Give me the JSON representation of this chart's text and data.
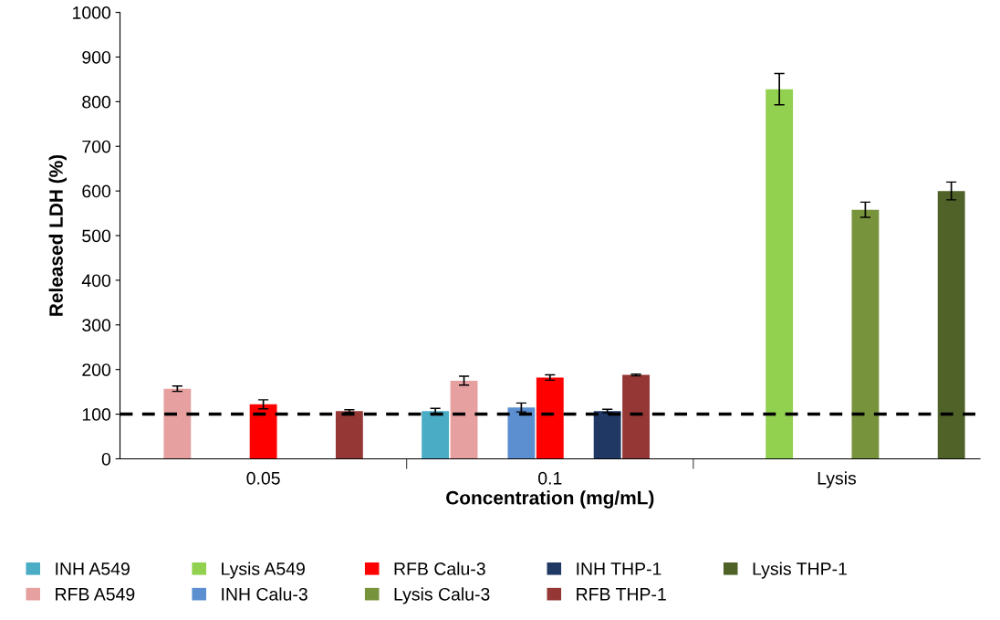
{
  "chart_data": {
    "type": "bar",
    "xlabel": "Concentration (mg/mL)",
    "ylabel": "Released LDH (%)",
    "categories": [
      "0.05",
      "0.1",
      "Lysis"
    ],
    "series": [
      {
        "name": "INH A549",
        "color": "#4bacc6",
        "values": [
          null,
          107,
          null
        ],
        "errors": [
          null,
          6,
          null
        ]
      },
      {
        "name": "RFB A549",
        "color": "#e6a0a0",
        "values": [
          157,
          175,
          null
        ],
        "errors": [
          6,
          10,
          null
        ]
      },
      {
        "name": "Lysis A549",
        "color": "#92d050",
        "values": [
          null,
          null,
          828
        ],
        "errors": [
          null,
          null,
          35
        ]
      },
      {
        "name": "INH Calu-3",
        "color": "#5b8fd0",
        "values": [
          null,
          115,
          null
        ],
        "errors": [
          null,
          10,
          null
        ]
      },
      {
        "name": "RFB Calu-3",
        "color": "#ff0000",
        "values": [
          122,
          182,
          null
        ],
        "errors": [
          10,
          6,
          null
        ]
      },
      {
        "name": "Lysis Calu-3",
        "color": "#77933c",
        "values": [
          null,
          null,
          558
        ],
        "errors": [
          null,
          null,
          17
        ]
      },
      {
        "name": "INH THP-1",
        "color": "#1f3864",
        "values": [
          null,
          107,
          null
        ],
        "errors": [
          null,
          4,
          null
        ]
      },
      {
        "name": "RFB THP-1",
        "color": "#953735",
        "values": [
          107,
          188,
          null
        ],
        "errors": [
          3,
          2,
          null
        ]
      },
      {
        "name": "Lysis THP-1",
        "color": "#4f6228",
        "values": [
          null,
          null,
          600
        ],
        "errors": [
          null,
          null,
          20
        ]
      }
    ],
    "ylim": [
      0,
      1000
    ],
    "yticks": [
      0,
      100,
      200,
      300,
      400,
      500,
      600,
      700,
      800,
      900,
      1000
    ],
    "ref_lines": [
      {
        "axis": "y",
        "value": 100,
        "color": "#000000",
        "line_style": "dashed"
      }
    ],
    "grid": false,
    "legend": "bottom"
  }
}
